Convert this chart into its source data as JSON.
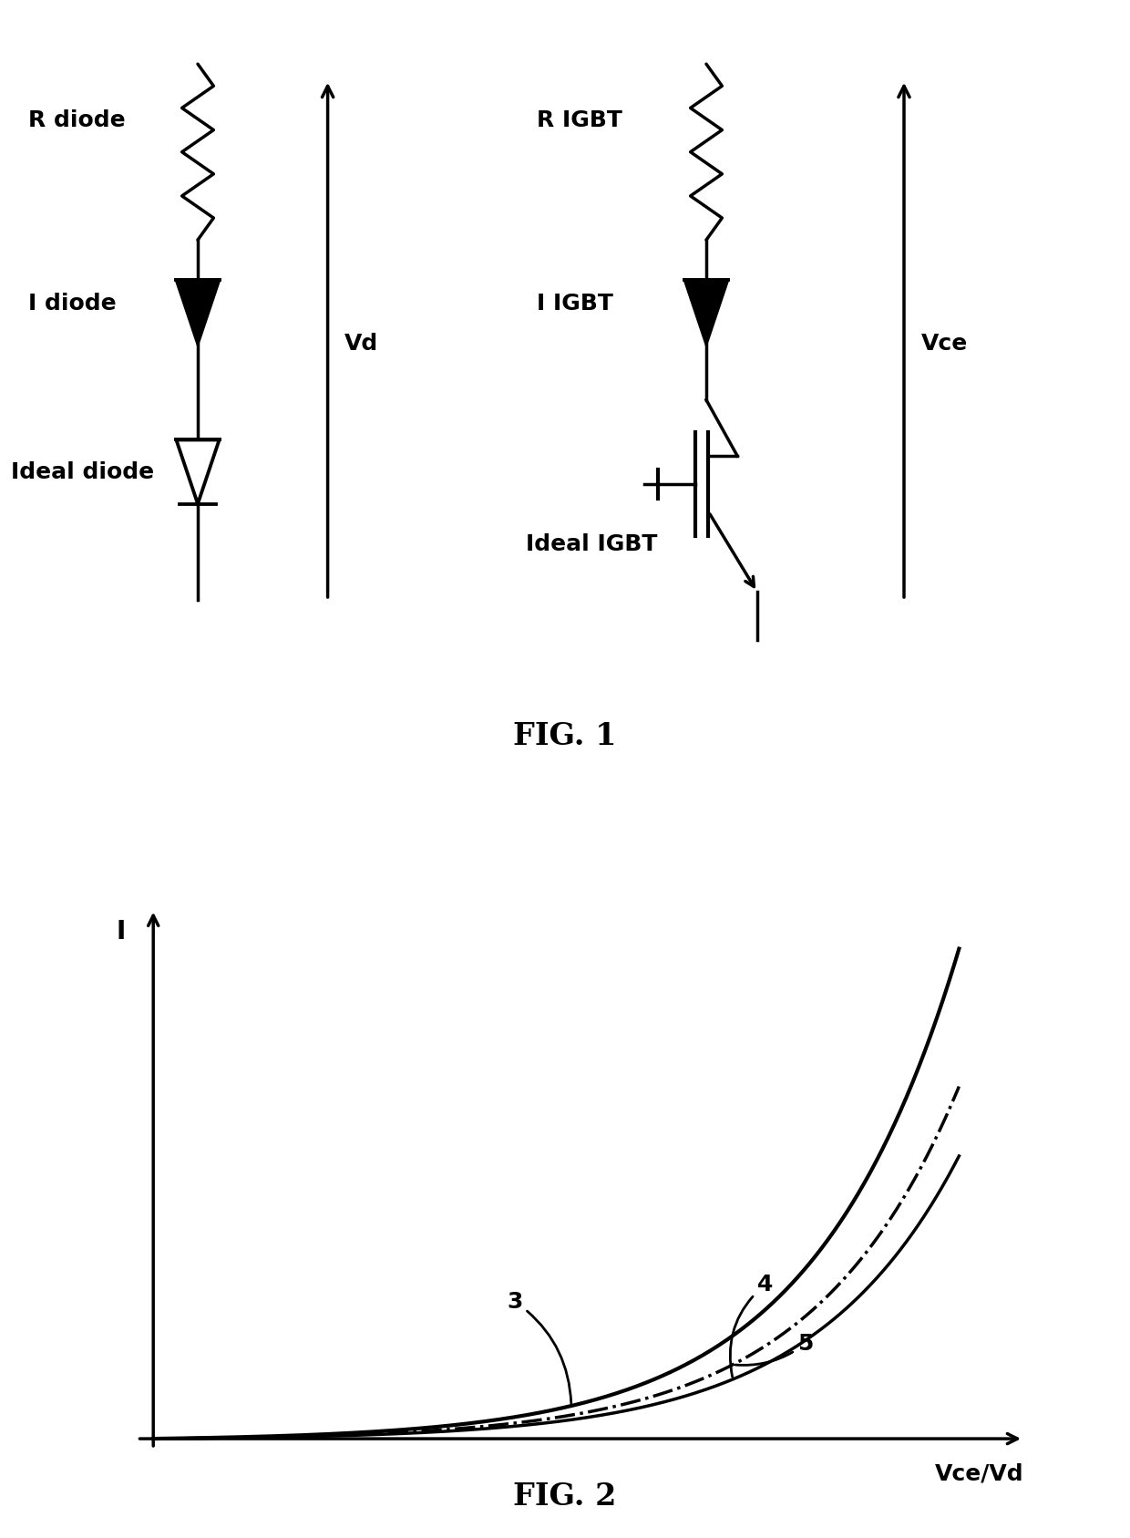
{
  "background_color": "#ffffff",
  "fig1_title": "FIG. 1",
  "fig2_title": "FIG. 2",
  "diode_label_r": "R diode",
  "diode_label_i": "I diode",
  "diode_label_ideal": "Ideal diode",
  "igbt_label_r": "R IGBT",
  "igbt_label_i": "I IGBT",
  "igbt_label_ideal": "Ideal IGBT",
  "vd_label": "Vd",
  "vce_label": "Vce",
  "axis_i_label": "I",
  "axis_x_label": "Vce/Vd",
  "curve3_label": "3",
  "curve4_label": "4",
  "curve5_label": "5",
  "line_color": "#000000",
  "line_width": 2.5,
  "font_size_labels": 18,
  "font_size_caption": 24
}
